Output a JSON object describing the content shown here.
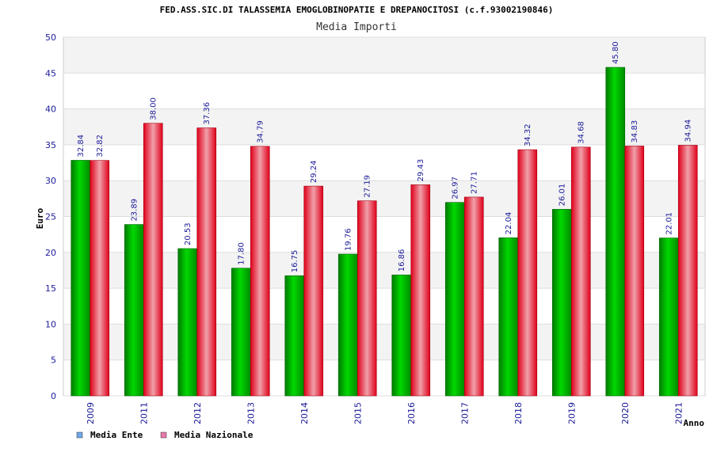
{
  "chart_data": {
    "type": "bar",
    "title": "FED.ASS.SIC.DI TALASSEMIA EMOGLOBINOPATIE E DREPANOCITOSI (c.f.93002190846)",
    "subtitle": "Media Importi",
    "xlabel": "Anno",
    "ylabel": "Euro",
    "ylim": [
      0,
      50
    ],
    "yticks": [
      0,
      5,
      10,
      15,
      20,
      25,
      30,
      35,
      40,
      45,
      50
    ],
    "grid": "horizontal",
    "legend_position": "bottom-left",
    "categories": [
      "2009",
      "2011",
      "2012",
      "2013",
      "2014",
      "2015",
      "2016",
      "2017",
      "2018",
      "2019",
      "2020",
      "2021"
    ],
    "series": [
      {
        "name": "Media Ente",
        "color": "#00a000",
        "legend_color": "#6fa8e8",
        "values": [
          32.84,
          23.89,
          20.53,
          17.8,
          16.75,
          19.76,
          16.86,
          26.97,
          22.04,
          26.01,
          45.8,
          22.01
        ],
        "labels": [
          "32.84",
          "23.89",
          "20.53",
          "17.80",
          "16.75",
          "19.76",
          "16.86",
          "26.97",
          "22.04",
          "26.01",
          "45.80",
          "22.01"
        ]
      },
      {
        "name": "Media Nazionale",
        "color": "#e8001a",
        "legend_color": "#e87aa8",
        "values": [
          32.82,
          38.0,
          37.36,
          34.79,
          29.24,
          27.19,
          29.43,
          27.71,
          34.32,
          34.68,
          34.83,
          34.94
        ],
        "labels": [
          "32.82",
          "38.00",
          "37.36",
          "34.79",
          "29.24",
          "27.19",
          "29.43",
          "27.71",
          "34.32",
          "34.68",
          "34.83",
          "34.94"
        ]
      }
    ]
  }
}
